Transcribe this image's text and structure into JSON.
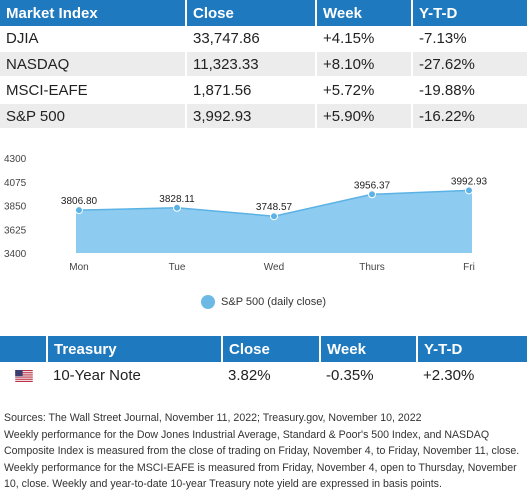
{
  "index_table": {
    "headers": [
      "Market Index",
      "Close",
      "Week",
      "Y-T-D"
    ],
    "rows": [
      [
        "DJIA",
        "33,747.86",
        "+4.15%",
        "-7.13%"
      ],
      [
        "NASDAQ",
        "11,323.33",
        "+8.10%",
        "-27.62%"
      ],
      [
        "MSCI-EAFE",
        "1,871.56",
        "+5.72%",
        "-19.88%"
      ],
      [
        "S&P 500",
        "3,992.93",
        "+5.90%",
        "-16.22%"
      ]
    ]
  },
  "chart_data": {
    "type": "area",
    "title": "",
    "xlabel": "",
    "ylabel": "",
    "categories": [
      "Mon",
      "Tue",
      "Wed",
      "Thurs",
      "Fri"
    ],
    "series": [
      {
        "name": "S&P 500 (daily close)",
        "values": [
          3806.8,
          3828.11,
          3748.57,
          3956.37,
          3992.93
        ],
        "labels": [
          "3806.80",
          "3828.11",
          "3748.57",
          "3956.37",
          "3992.93"
        ]
      }
    ],
    "yticks": [
      3400,
      3625,
      3850,
      4075,
      4300
    ],
    "ylim": [
      3400,
      4300
    ],
    "grid": false,
    "legend": "bottom",
    "colors": {
      "fill": "#8ecbf0",
      "line": "#5bb2e4",
      "marker": "#5bb2e4"
    }
  },
  "treasury_table": {
    "headers": [
      "Treasury",
      "Close",
      "Week",
      "Y-T-D"
    ],
    "row": {
      "flag_icon": "us-flag-icon",
      "name": "10-Year Note",
      "close": "3.82%",
      "week": "-0.35%",
      "ytd": "+2.30%"
    }
  },
  "notes": [
    "Sources: The Wall Street Journal, November 11, 2022; Treasury.gov, November 10, 2022",
    "Weekly performance for the Dow Jones Industrial Average, Standard & Poor's 500 Index, and NASDAQ Composite Index is measured from the close of trading on Friday, November 4, to Friday, November 11, close. Weekly performance for the MSCI-EAFE is measured from Friday, November 4, open to Thursday, November 10, close. Weekly and year-to-date 10-year Treasury note yield are expressed in basis points."
  ]
}
